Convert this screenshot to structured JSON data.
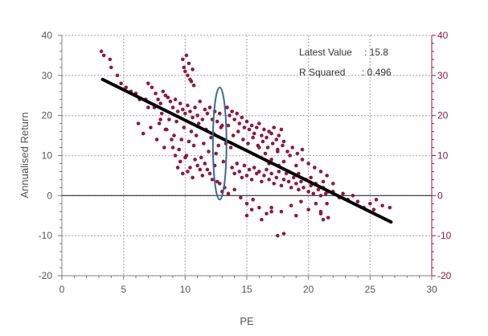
{
  "chart_data": {
    "type": "scatter",
    "title": "",
    "xlabel": "PE",
    "ylabel": "Annualised Return",
    "xlim": [
      0,
      30
    ],
    "ylim": [
      -20,
      40
    ],
    "x_ticks": [
      "0",
      "5",
      "10",
      "15",
      "20",
      "25",
      "30"
    ],
    "y_ticks": [
      "-20",
      "-10",
      "0",
      "10",
      "20",
      "30",
      "40"
    ],
    "y_ticks_right": [
      "-20",
      "-10",
      "0",
      "10",
      "20",
      "30",
      "40"
    ],
    "grid": true,
    "annotations": [
      {
        "label": "Latest Value",
        "value": ": 15.8"
      },
      {
        "label": "R  Squared",
        "value": ":  0.496"
      }
    ],
    "trendline": {
      "x": [
        3.3,
        26.7
      ],
      "y": [
        29.0,
        -6.6
      ]
    },
    "highlight_ellipse": {
      "cx": 12.8,
      "cy": 13.0,
      "rx": 0.55,
      "ry": 14.0
    },
    "colors": {
      "points": "#8b1a44",
      "trendline": "#000000",
      "ellipse": "#3d6a8f",
      "grid": "#b8b8b8",
      "right_axis": "#8b1a44"
    },
    "point_clusters": [
      {
        "x": [
          3.2,
          3.4,
          3.9,
          4.0,
          4.5,
          4.8,
          5.2,
          5.6,
          6.0,
          6.3,
          6.8,
          7.0
        ],
        "y": [
          36.0,
          35.0,
          34.0,
          32.0,
          30.0,
          28.0,
          27.0,
          26.0,
          25.5,
          24.0,
          24.0,
          22.0
        ]
      },
      {
        "x": [
          7.0,
          7.3,
          7.6,
          7.8,
          8.0,
          8.2,
          8.4,
          8.6,
          8.8,
          9.0,
          9.2,
          9.4,
          9.6,
          9.8,
          10.0,
          10.2,
          10.4,
          10.6,
          10.8,
          11.0,
          11.2,
          11.4,
          11.6,
          11.8,
          12.0,
          12.2,
          12.4,
          12.6,
          12.8,
          13.0,
          7.5,
          8.1,
          8.7,
          9.3,
          9.9,
          10.5,
          11.1,
          11.7,
          12.3,
          12.9,
          7.9,
          8.5,
          9.1,
          9.7,
          10.3,
          10.9,
          11.5,
          12.1,
          12.7,
          13.3,
          8.3,
          8.9,
          9.5,
          10.1,
          10.7,
          11.3,
          11.9,
          12.5,
          13.1,
          13.7
        ],
        "y": [
          28.0,
          27.0,
          25.5,
          24.0,
          23.0,
          26.0,
          25.0,
          24.5,
          23.5,
          22.0,
          24.0,
          21.0,
          23.0,
          21.5,
          20.5,
          22.5,
          21.0,
          19.5,
          22.0,
          20.0,
          23.5,
          19.0,
          21.5,
          20.5,
          22.0,
          19.0,
          21.0,
          18.5,
          20.5,
          17.5,
          22.0,
          20.5,
          19.0,
          18.5,
          17.0,
          16.0,
          18.0,
          16.5,
          15.5,
          17.0,
          18.0,
          16.5,
          15.0,
          14.0,
          13.5,
          15.0,
          13.0,
          14.5,
          12.5,
          13.0,
          12.0,
          14.0,
          11.5,
          10.0,
          12.5,
          9.5,
          11.0,
          10.5,
          8.5,
          12.0
        ]
      },
      {
        "x": [
          9.8,
          10.0,
          10.1,
          10.2,
          10.3,
          10.4,
          10.5,
          10.6,
          9.9,
          10.7
        ],
        "y": [
          34.0,
          31.0,
          35.0,
          30.0,
          33.0,
          29.0,
          28.5,
          31.5,
          32.0,
          27.5
        ]
      },
      {
        "x": [
          9.2,
          9.6,
          10.0,
          10.4,
          10.8,
          11.2,
          11.6,
          12.0,
          12.4,
          9.4,
          9.8,
          10.2,
          10.6,
          11.0,
          11.4,
          11.8,
          12.2,
          12.6
        ],
        "y": [
          10.0,
          8.5,
          9.5,
          7.0,
          9.0,
          6.5,
          8.0,
          5.5,
          7.5,
          7.0,
          5.5,
          6.0,
          4.5,
          7.5,
          5.0,
          6.5,
          4.0,
          3.5
        ]
      },
      {
        "x": [
          13.4,
          13.6,
          13.8,
          14.0,
          14.2,
          14.4,
          14.6,
          14.8,
          15.0,
          15.2,
          15.4,
          15.6,
          15.8,
          16.0,
          16.2,
          16.4,
          16.6,
          16.8,
          17.0,
          17.2,
          17.4,
          17.6,
          17.8,
          18.0,
          13.5,
          13.9,
          14.3,
          14.7,
          15.1,
          15.5,
          15.9,
          16.3,
          16.7,
          17.1,
          17.5,
          17.9,
          18.3,
          18.7,
          19.1,
          19.5
        ],
        "y": [
          22.0,
          20.0,
          21.0,
          19.0,
          20.5,
          18.0,
          19.5,
          17.0,
          18.5,
          16.5,
          17.5,
          15.5,
          17.0,
          18.0,
          15.0,
          16.5,
          14.5,
          16.0,
          15.5,
          17.0,
          14.0,
          15.0,
          16.5,
          13.5,
          17.5,
          15.0,
          16.0,
          14.0,
          13.0,
          14.5,
          12.5,
          13.5,
          12.0,
          13.0,
          11.5,
          12.5,
          11.0,
          12.0,
          10.5,
          11.5
        ]
      },
      {
        "x": [
          13.8,
          14.0,
          14.2,
          14.4,
          14.6,
          14.8,
          15.0,
          15.2,
          15.4,
          15.6,
          15.8,
          16.0,
          16.2,
          16.4,
          16.6,
          16.8,
          17.0,
          17.2,
          17.4,
          17.6,
          17.8,
          18.0,
          18.2,
          18.4,
          18.6,
          18.8,
          19.0,
          19.2,
          19.4,
          19.6,
          19.8,
          20.0,
          20.2,
          20.4,
          20.6,
          20.8,
          21.0,
          21.2,
          21.4,
          21.6
        ],
        "y": [
          7.0,
          5.5,
          8.0,
          6.0,
          4.5,
          7.5,
          5.0,
          6.5,
          4.0,
          7.0,
          5.5,
          6.0,
          3.5,
          5.0,
          6.5,
          4.0,
          5.5,
          3.0,
          4.5,
          6.0,
          2.5,
          4.0,
          5.5,
          3.5,
          2.0,
          4.5,
          3.0,
          1.5,
          3.5,
          2.0,
          4.0,
          1.0,
          2.5,
          0.5,
          3.0,
          1.5,
          0.0,
          2.0,
          0.5,
          1.0
        ]
      },
      {
        "x": [
          16.0,
          16.5,
          17.0,
          17.5,
          18.0,
          18.5,
          19.0,
          19.5,
          20.0,
          20.5,
          21.0,
          21.5,
          22.0,
          16.8,
          17.6,
          18.4,
          19.2,
          20.2,
          21.2
        ],
        "y": [
          12.0,
          10.5,
          9.0,
          11.0,
          8.5,
          10.0,
          7.5,
          9.0,
          8.0,
          7.0,
          6.0,
          5.0,
          3.0,
          8.0,
          7.5,
          6.0,
          5.5,
          4.5,
          3.5
        ]
      },
      {
        "x": [
          12.8,
          13.0,
          13.2,
          13.5,
          14.0,
          14.5,
          15.0,
          15.5,
          16.0,
          17.0,
          17.5,
          18.0
        ],
        "y": [
          3.0,
          1.0,
          2.0,
          0.5,
          1.5,
          -0.5,
          -2.0,
          -1.0,
          -3.0,
          -4.0,
          -10.0,
          -9.5
        ]
      },
      {
        "x": [
          15.0,
          15.4,
          16.2,
          16.6,
          17.0,
          17.8,
          18.6,
          19.0,
          19.4,
          20.0,
          20.6,
          21.0,
          21.2,
          21.6
        ],
        "y": [
          -5.0,
          -3.5,
          -6.0,
          -4.5,
          -3.0,
          -4.0,
          -2.5,
          -5.0,
          -1.5,
          -3.5,
          -2.0,
          -4.5,
          -6.0,
          -5.5
        ]
      },
      {
        "x": [
          21.0,
          21.5,
          22.0,
          22.5,
          22.8,
          23.2,
          23.6,
          24.0,
          24.5,
          25.0,
          25.3,
          25.5,
          26.0,
          26.6
        ],
        "y": [
          -4.0,
          -2.0,
          1.0,
          -0.5,
          0.5,
          -1.0,
          0.0,
          -1.5,
          -3.0,
          -2.0,
          -3.5,
          -1.0,
          -2.5,
          -3.0
        ]
      },
      {
        "x": [
          6.2,
          6.6,
          7.2,
          7.7,
          8.0,
          8.4,
          9.0
        ],
        "y": [
          18.0,
          15.5,
          17.0,
          14.0,
          19.0,
          16.5,
          12.0
        ]
      }
    ]
  }
}
